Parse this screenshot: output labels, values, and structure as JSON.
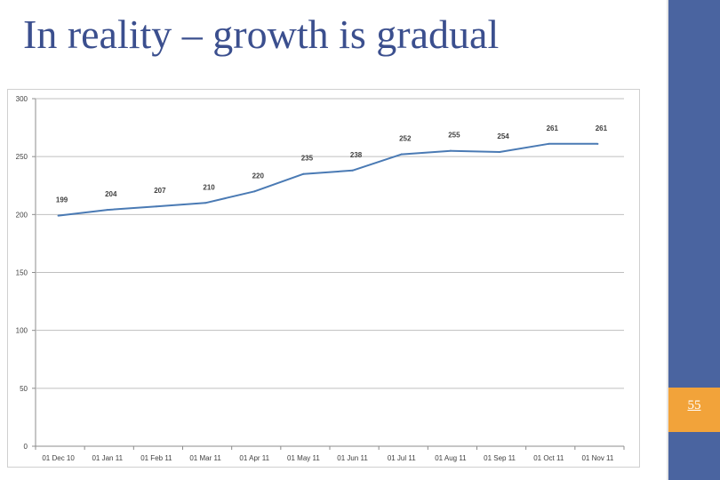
{
  "slide": {
    "title": "In reality – growth is gradual",
    "page_number": "55"
  },
  "colors": {
    "title": "#3b4f8e",
    "sidebar": "#4a64a0",
    "page_number_box": "#f2a33a",
    "line": "#4a7ab4",
    "grid": "#bfbfbf"
  },
  "chart_data": {
    "type": "line",
    "title": "",
    "xlabel": "",
    "ylabel": "",
    "ylim": [
      0,
      300
    ],
    "yticks": [
      0,
      50,
      100,
      150,
      200,
      250,
      300
    ],
    "grid": true,
    "categories": [
      "01 Dec 10",
      "01 Jan 11",
      "01 Feb 11",
      "01 Mar 11",
      "01 Apr 11",
      "01 May 11",
      "01 Jun 11",
      "01 Jul 11",
      "01 Aug 11",
      "01 Sep 11",
      "01 Oct 11",
      "01 Nov 11"
    ],
    "series": [
      {
        "values": [
          199,
          204,
          207,
          210,
          220,
          235,
          238,
          252,
          255,
          254,
          261,
          261
        ]
      }
    ],
    "data_labels": [
      "199",
      "204",
      "207",
      "210",
      "220",
      "235",
      "238",
      "252",
      "255",
      "254",
      "261",
      "261"
    ]
  }
}
